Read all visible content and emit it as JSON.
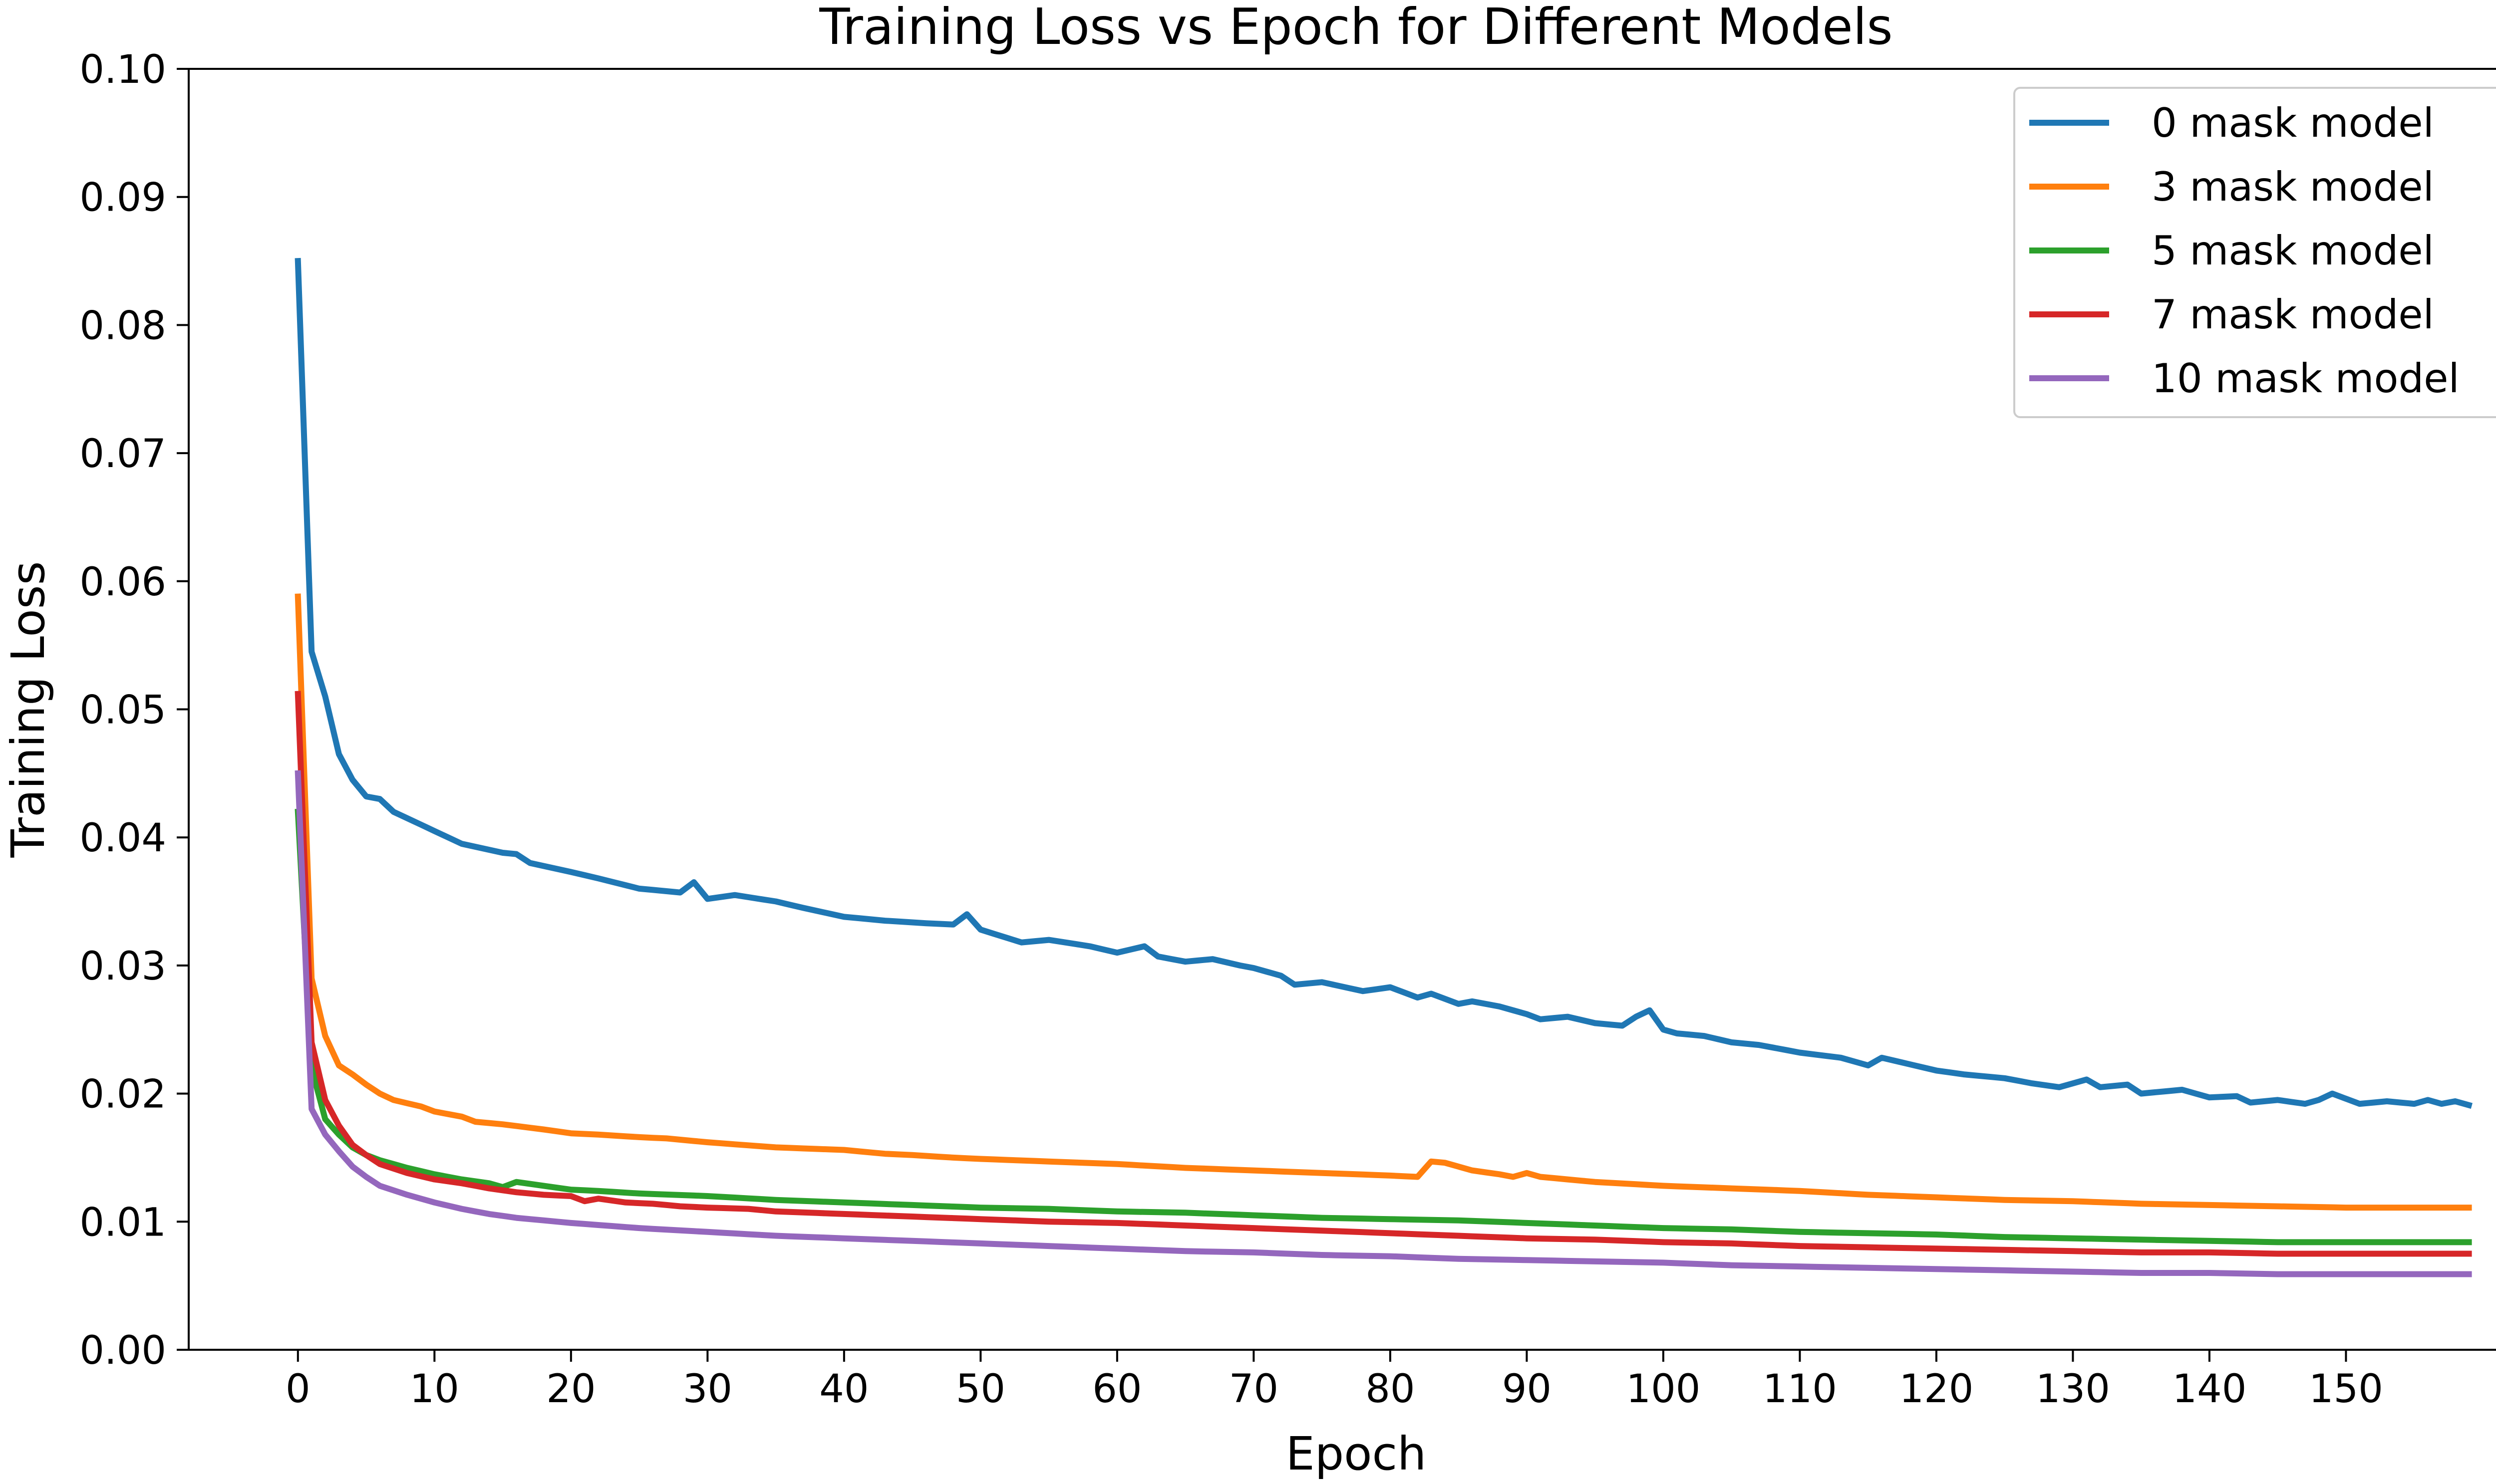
{
  "chart_data": {
    "type": "line",
    "title": "Training Loss vs Epoch for Different Models",
    "xlabel": "Epoch",
    "ylabel": "Training Loss",
    "xlim": [
      -8,
      163
    ],
    "ylim": [
      0.0,
      0.1
    ],
    "xticks": [
      0,
      10,
      20,
      30,
      40,
      50,
      60,
      70,
      80,
      90,
      100,
      110,
      120,
      130,
      140,
      150
    ],
    "xtick_labels": [
      "0",
      "10",
      "20",
      "30",
      "40",
      "50",
      "60",
      "70",
      "80",
      "90",
      "100",
      "110",
      "120",
      "130",
      "140",
      "150"
    ],
    "yticks": [
      0.0,
      0.01,
      0.02,
      0.03,
      0.04,
      0.05,
      0.06,
      0.07,
      0.08,
      0.09,
      0.1
    ],
    "ytick_labels": [
      "0.00",
      "0.01",
      "0.02",
      "0.03",
      "0.04",
      "0.05",
      "0.06",
      "0.07",
      "0.08",
      "0.09",
      "0.10"
    ],
    "grid": false,
    "legend_position": "top-right",
    "series": [
      {
        "name": "0 mask model",
        "color": "#1f77b4",
        "keypoints": [
          [
            0,
            0.085
          ],
          [
            1,
            0.0545
          ],
          [
            2,
            0.051
          ],
          [
            3,
            0.0465
          ],
          [
            4,
            0.0445
          ],
          [
            5,
            0.0432
          ],
          [
            6,
            0.043
          ],
          [
            7,
            0.042
          ],
          [
            8,
            0.0415
          ],
          [
            9,
            0.041
          ],
          [
            10,
            0.0405
          ],
          [
            12,
            0.0395
          ],
          [
            15,
            0.0388
          ],
          [
            16,
            0.0387
          ],
          [
            17,
            0.038
          ],
          [
            20,
            0.0373
          ],
          [
            22,
            0.0368
          ],
          [
            25,
            0.036
          ],
          [
            28,
            0.0357
          ],
          [
            29,
            0.0365
          ],
          [
            30,
            0.0352
          ],
          [
            32,
            0.0355
          ],
          [
            35,
            0.035
          ],
          [
            37,
            0.0345
          ],
          [
            40,
            0.0338
          ],
          [
            43,
            0.0335
          ],
          [
            46,
            0.0333
          ],
          [
            48,
            0.0332
          ],
          [
            49,
            0.034
          ],
          [
            50,
            0.0328
          ],
          [
            53,
            0.0318
          ],
          [
            55,
            0.032
          ],
          [
            58,
            0.0315
          ],
          [
            60,
            0.031
          ],
          [
            62,
            0.0315
          ],
          [
            63,
            0.0307
          ],
          [
            65,
            0.0303
          ],
          [
            67,
            0.0305
          ],
          [
            69,
            0.03
          ],
          [
            70,
            0.0298
          ],
          [
            72,
            0.0292
          ],
          [
            73,
            0.0285
          ],
          [
            75,
            0.0287
          ],
          [
            78,
            0.028
          ],
          [
            80,
            0.0283
          ],
          [
            82,
            0.0275
          ],
          [
            83,
            0.0278
          ],
          [
            85,
            0.027
          ],
          [
            86,
            0.0272
          ],
          [
            88,
            0.0268
          ],
          [
            90,
            0.0262
          ],
          [
            91,
            0.0258
          ],
          [
            93,
            0.026
          ],
          [
            95,
            0.0255
          ],
          [
            97,
            0.0253
          ],
          [
            98,
            0.026
          ],
          [
            99,
            0.0265
          ],
          [
            100,
            0.025
          ],
          [
            101,
            0.0247
          ],
          [
            103,
            0.0245
          ],
          [
            105,
            0.024
          ],
          [
            107,
            0.0238
          ],
          [
            110,
            0.0232
          ],
          [
            113,
            0.0228
          ],
          [
            115,
            0.0222
          ],
          [
            116,
            0.0228
          ],
          [
            118,
            0.0223
          ],
          [
            120,
            0.0218
          ],
          [
            122,
            0.0215
          ],
          [
            125,
            0.0212
          ],
          [
            127,
            0.0208
          ],
          [
            129,
            0.0205
          ],
          [
            130,
            0.0208
          ],
          [
            131,
            0.0211
          ],
          [
            132,
            0.0205
          ],
          [
            134,
            0.0207
          ],
          [
            135,
            0.02
          ],
          [
            138,
            0.0203
          ],
          [
            140,
            0.0197
          ],
          [
            142,
            0.0198
          ],
          [
            143,
            0.0193
          ],
          [
            145,
            0.0195
          ],
          [
            147,
            0.0192
          ],
          [
            148,
            0.0195
          ],
          [
            149,
            0.02
          ],
          [
            151,
            0.0192
          ],
          [
            153,
            0.0194
          ],
          [
            155,
            0.0192
          ],
          [
            156,
            0.0195
          ],
          [
            157,
            0.0192
          ],
          [
            158,
            0.0194
          ],
          [
            159,
            0.0191
          ]
        ]
      },
      {
        "name": "3 mask model",
        "color": "#ff7f0e",
        "keypoints": [
          [
            0,
            0.0588
          ],
          [
            1,
            0.029
          ],
          [
            2,
            0.0245
          ],
          [
            3,
            0.0222
          ],
          [
            4,
            0.0215
          ],
          [
            5,
            0.0207
          ],
          [
            6,
            0.02
          ],
          [
            7,
            0.0195
          ],
          [
            9,
            0.019
          ],
          [
            10,
            0.0186
          ],
          [
            12,
            0.0182
          ],
          [
            13,
            0.0178
          ],
          [
            15,
            0.0176
          ],
          [
            18,
            0.0172
          ],
          [
            20,
            0.0169
          ],
          [
            22,
            0.0168
          ],
          [
            25,
            0.0166
          ],
          [
            27,
            0.0165
          ],
          [
            30,
            0.0162
          ],
          [
            35,
            0.0158
          ],
          [
            40,
            0.0156
          ],
          [
            43,
            0.0153
          ],
          [
            45,
            0.0152
          ],
          [
            48,
            0.015
          ],
          [
            50,
            0.0149
          ],
          [
            55,
            0.0147
          ],
          [
            60,
            0.0145
          ],
          [
            65,
            0.0142
          ],
          [
            70,
            0.014
          ],
          [
            75,
            0.0138
          ],
          [
            80,
            0.0136
          ],
          [
            82,
            0.0135
          ],
          [
            83,
            0.0147
          ],
          [
            84,
            0.0146
          ],
          [
            85,
            0.0143
          ],
          [
            86,
            0.014
          ],
          [
            88,
            0.0137
          ],
          [
            89,
            0.0135
          ],
          [
            90,
            0.0138
          ],
          [
            91,
            0.0135
          ],
          [
            95,
            0.0131
          ],
          [
            100,
            0.0128
          ],
          [
            105,
            0.0126
          ],
          [
            110,
            0.0124
          ],
          [
            115,
            0.0121
          ],
          [
            120,
            0.0119
          ],
          [
            125,
            0.0117
          ],
          [
            130,
            0.0116
          ],
          [
            135,
            0.0114
          ],
          [
            140,
            0.0113
          ],
          [
            145,
            0.0112
          ],
          [
            150,
            0.0111
          ],
          [
            159,
            0.0111
          ]
        ]
      },
      {
        "name": "5 mask model",
        "color": "#2ca02c",
        "keypoints": [
          [
            0,
            0.042
          ],
          [
            1,
            0.022
          ],
          [
            2,
            0.018
          ],
          [
            3,
            0.0168
          ],
          [
            4,
            0.0158
          ],
          [
            5,
            0.0152
          ],
          [
            6,
            0.0148
          ],
          [
            8,
            0.0142
          ],
          [
            10,
            0.0137
          ],
          [
            12,
            0.0133
          ],
          [
            14,
            0.013
          ],
          [
            15,
            0.0127
          ],
          [
            16,
            0.0131
          ],
          [
            18,
            0.0128
          ],
          [
            20,
            0.0125
          ],
          [
            22,
            0.0124
          ],
          [
            25,
            0.0122
          ],
          [
            30,
            0.012
          ],
          [
            35,
            0.0117
          ],
          [
            40,
            0.0115
          ],
          [
            45,
            0.0113
          ],
          [
            50,
            0.0111
          ],
          [
            55,
            0.011
          ],
          [
            60,
            0.0108
          ],
          [
            65,
            0.0107
          ],
          [
            70,
            0.0105
          ],
          [
            75,
            0.0103
          ],
          [
            80,
            0.0102
          ],
          [
            85,
            0.0101
          ],
          [
            90,
            0.0099
          ],
          [
            95,
            0.0097
          ],
          [
            100,
            0.0095
          ],
          [
            105,
            0.0094
          ],
          [
            110,
            0.0092
          ],
          [
            115,
            0.0091
          ],
          [
            120,
            0.009
          ],
          [
            125,
            0.0088
          ],
          [
            130,
            0.0087
          ],
          [
            135,
            0.0086
          ],
          [
            140,
            0.0085
          ],
          [
            145,
            0.0084
          ],
          [
            150,
            0.0084
          ],
          [
            159,
            0.0084
          ]
        ]
      },
      {
        "name": "7 mask model",
        "color": "#d62728",
        "keypoints": [
          [
            0,
            0.0512
          ],
          [
            1,
            0.024
          ],
          [
            2,
            0.0195
          ],
          [
            3,
            0.0175
          ],
          [
            4,
            0.016
          ],
          [
            5,
            0.0152
          ],
          [
            6,
            0.0145
          ],
          [
            8,
            0.0138
          ],
          [
            10,
            0.0133
          ],
          [
            12,
            0.013
          ],
          [
            14,
            0.0126
          ],
          [
            16,
            0.0123
          ],
          [
            18,
            0.0121
          ],
          [
            20,
            0.012
          ],
          [
            21,
            0.0116
          ],
          [
            22,
            0.0118
          ],
          [
            24,
            0.0115
          ],
          [
            26,
            0.0114
          ],
          [
            28,
            0.0112
          ],
          [
            30,
            0.0111
          ],
          [
            33,
            0.011
          ],
          [
            35,
            0.0108
          ],
          [
            40,
            0.0106
          ],
          [
            45,
            0.0104
          ],
          [
            50,
            0.0102
          ],
          [
            55,
            0.01
          ],
          [
            60,
            0.0099
          ],
          [
            65,
            0.0097
          ],
          [
            70,
            0.0095
          ],
          [
            75,
            0.0093
          ],
          [
            80,
            0.0091
          ],
          [
            85,
            0.0089
          ],
          [
            90,
            0.0087
          ],
          [
            95,
            0.0086
          ],
          [
            100,
            0.0084
          ],
          [
            105,
            0.0083
          ],
          [
            110,
            0.0081
          ],
          [
            115,
            0.008
          ],
          [
            120,
            0.0079
          ],
          [
            125,
            0.0078
          ],
          [
            130,
            0.0077
          ],
          [
            135,
            0.0076
          ],
          [
            140,
            0.0076
          ],
          [
            145,
            0.0075
          ],
          [
            150,
            0.0075
          ],
          [
            159,
            0.0075
          ]
        ]
      },
      {
        "name": "10 mask model",
        "color": "#9467bd",
        "keypoints": [
          [
            0,
            0.045
          ],
          [
            1,
            0.0188
          ],
          [
            2,
            0.0168
          ],
          [
            3,
            0.0155
          ],
          [
            4,
            0.0143
          ],
          [
            5,
            0.0135
          ],
          [
            6,
            0.0128
          ],
          [
            8,
            0.0121
          ],
          [
            10,
            0.0115
          ],
          [
            12,
            0.011
          ],
          [
            14,
            0.0106
          ],
          [
            16,
            0.0103
          ],
          [
            18,
            0.0101
          ],
          [
            20,
            0.0099
          ],
          [
            25,
            0.0095
          ],
          [
            30,
            0.0092
          ],
          [
            35,
            0.0089
          ],
          [
            40,
            0.0087
          ],
          [
            45,
            0.0085
          ],
          [
            50,
            0.0083
          ],
          [
            55,
            0.0081
          ],
          [
            60,
            0.0079
          ],
          [
            65,
            0.0077
          ],
          [
            70,
            0.0076
          ],
          [
            75,
            0.0074
          ],
          [
            80,
            0.0073
          ],
          [
            85,
            0.0071
          ],
          [
            90,
            0.007
          ],
          [
            95,
            0.0069
          ],
          [
            100,
            0.0068
          ],
          [
            105,
            0.0066
          ],
          [
            110,
            0.0065
          ],
          [
            115,
            0.0064
          ],
          [
            120,
            0.0063
          ],
          [
            125,
            0.0062
          ],
          [
            130,
            0.0061
          ],
          [
            135,
            0.006
          ],
          [
            140,
            0.006
          ],
          [
            145,
            0.0059
          ],
          [
            150,
            0.0059
          ],
          [
            159,
            0.0059
          ]
        ]
      }
    ]
  }
}
